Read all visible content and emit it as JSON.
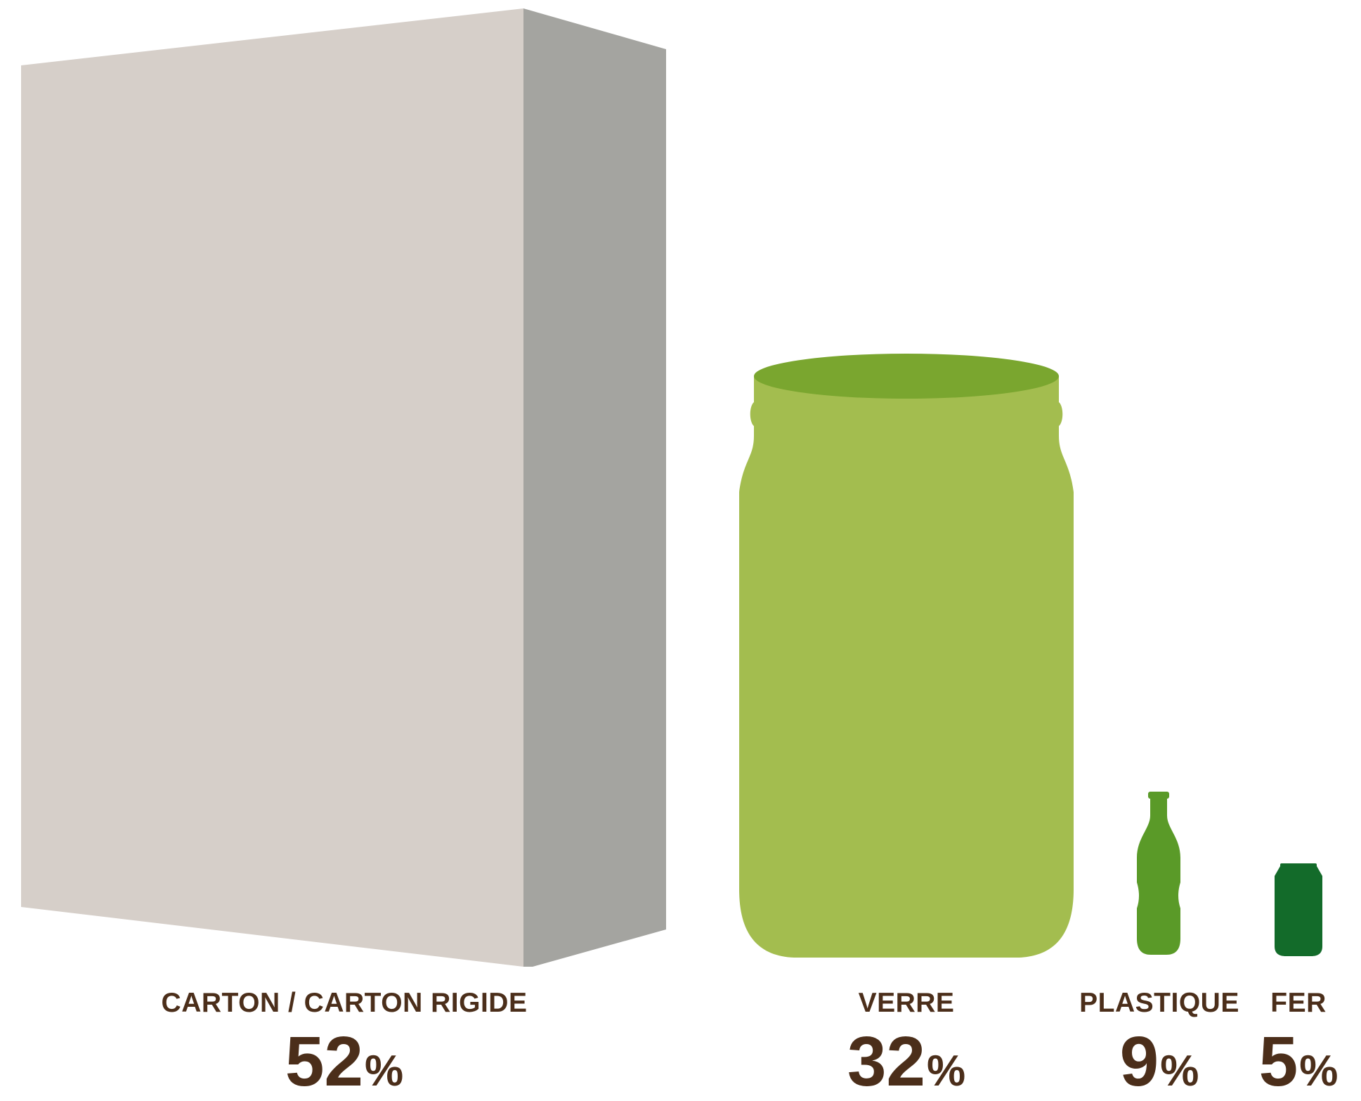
{
  "chart_data": {
    "type": "bar",
    "style": "pictogram",
    "categories": [
      "CARTON / CARTON RIGIDE",
      "VERRE",
      "PLASTIQUE",
      "FER"
    ],
    "values": [
      52,
      32,
      9,
      5
    ],
    "value_labels": [
      "52",
      "32",
      "9",
      "5"
    ],
    "unit": "%",
    "icons": [
      "box-icon",
      "jar-icon",
      "bottle-icon",
      "can-icon"
    ],
    "colors": [
      "#d6cfc9",
      "#a3bd4f",
      "#5a9a28",
      "#136b2a"
    ],
    "box_side_color": "#a4a4a0",
    "jar_lid_color": "#7aa62f",
    "label_color": "#4b2e1a"
  }
}
